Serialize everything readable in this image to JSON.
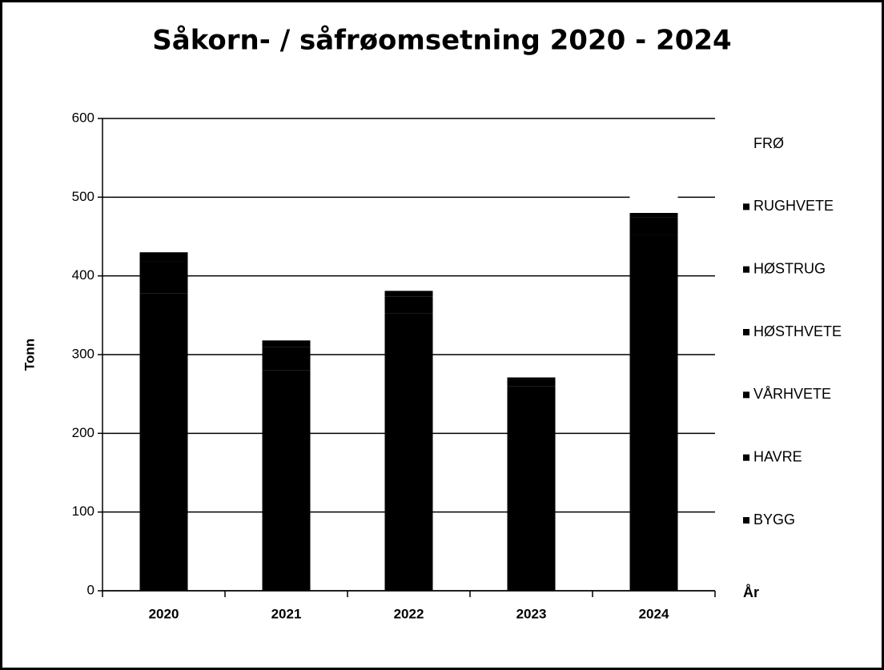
{
  "chart_data": {
    "type": "stacked_bar",
    "title": "Såkorn- / såfrøomsetning 2020 - 2024",
    "y_label": "Tonn",
    "x_label": "År",
    "categories": [
      "2020",
      "2021",
      "2022",
      "2023",
      "2024"
    ],
    "series": [
      {
        "name": "BYGG",
        "color": "#000000",
        "values": [
          378,
          280,
          352,
          260,
          452
        ]
      },
      {
        "name": "HAVRE",
        "color": "#000000",
        "values": [
          40,
          30,
          22,
          8,
          22
        ]
      },
      {
        "name": "VÅRHVETE",
        "color": "#000000",
        "values": [
          12,
          8,
          7,
          3,
          6
        ]
      },
      {
        "name": "HØSTHVETE",
        "color": "#000000",
        "values": [
          0,
          0,
          0,
          0,
          0
        ]
      },
      {
        "name": "HØSTRUG",
        "color": "#000000",
        "values": [
          0,
          0,
          0,
          0,
          0
        ]
      },
      {
        "name": "RUGHVETE",
        "color": "#000000",
        "values": [
          0,
          0,
          0,
          0,
          0
        ]
      },
      {
        "name": "FRØ",
        "color": "#ffffff",
        "values": [
          0,
          0,
          0,
          0,
          22
        ]
      }
    ],
    "ylim": [
      0,
      600
    ],
    "yticks": [
      0,
      100,
      200,
      300,
      400,
      500,
      600
    ],
    "grid": true,
    "legend": "right"
  }
}
